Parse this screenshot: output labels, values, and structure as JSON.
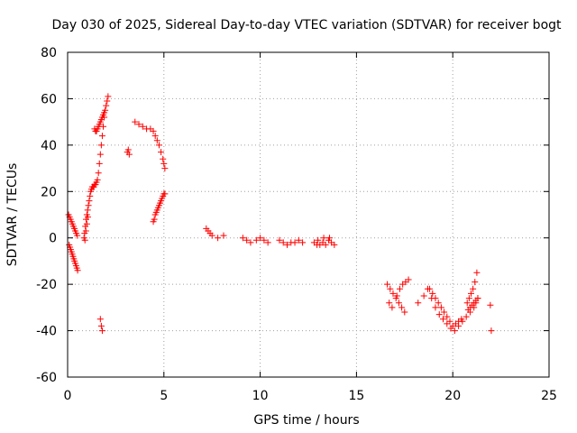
{
  "chart_data": {
    "type": "scatter",
    "title": "Day 030 of 2025, Sidereal Day-to-day VTEC variation (SDTVAR) for receiver bogt",
    "xlabel": "GPS time / hours",
    "ylabel": "SDTVAR / TECUs",
    "xlim": [
      0,
      25
    ],
    "ylim": [
      -60,
      80
    ],
    "xticks": [
      0,
      5,
      10,
      15,
      20,
      25
    ],
    "yticks": [
      -60,
      -40,
      -20,
      0,
      20,
      40,
      60,
      80
    ],
    "xtick_labels": [
      "0",
      "5",
      "10",
      "15",
      "20",
      "25"
    ],
    "ytick_labels": [
      "-60",
      "-40",
      "-20",
      "0",
      "20",
      "40",
      "60",
      "80"
    ],
    "grid": true,
    "marker": "plus",
    "color": "#ff0000",
    "series": [
      {
        "x": [
          0.05,
          0.1,
          0.15,
          0.2,
          0.25,
          0.3,
          0.35,
          0.4,
          0.45,
          0.5,
          0.08,
          0.12,
          0.16,
          0.2,
          0.24,
          0.28,
          0.32,
          0.36,
          0.4,
          0.44,
          0.48,
          0.52,
          0.85,
          0.88,
          0.92,
          0.96,
          1.0,
          1.04,
          1.08,
          1.12,
          1.16,
          1.2,
          1.24,
          1.28,
          1.32,
          1.36,
          1.4,
          1.45,
          1.5,
          1.55,
          1.6,
          1.65,
          1.7,
          1.75,
          1.8,
          1.85,
          1.9,
          1.95,
          2.0,
          2.05,
          2.1,
          1.4,
          1.45,
          1.5,
          1.55,
          1.6,
          1.65,
          1.7,
          1.75,
          1.8,
          1.85,
          1.9,
          0.9,
          0.95,
          1.0,
          1.05,
          1.7,
          1.75,
          1.8,
          3.1,
          3.15,
          3.2,
          3.5,
          3.7,
          3.9,
          4.1,
          4.3,
          4.45,
          4.55,
          4.65,
          4.75,
          4.85,
          4.95,
          5.0,
          5.05,
          4.45,
          4.5,
          4.55,
          4.6,
          4.65,
          4.7,
          4.75,
          4.8,
          4.85,
          4.9,
          4.95,
          5.0,
          5.05,
          7.2,
          7.3,
          7.4,
          7.5,
          7.8,
          8.1,
          9.1,
          9.3,
          9.5,
          9.8,
          10.0,
          10.2,
          10.4,
          11.0,
          11.2,
          11.4,
          11.6,
          11.8,
          12.0,
          12.2,
          12.8,
          12.95,
          13.1,
          13.25,
          13.4,
          13.55,
          13.7,
          13.85,
          13.0,
          13.3,
          13.6,
          16.6,
          16.75,
          16.9,
          17.05,
          17.2,
          17.35,
          17.5,
          17.1,
          17.25,
          17.4,
          17.55,
          17.7,
          16.7,
          16.85,
          18.2,
          18.5,
          18.7,
          18.9,
          19.1,
          19.3,
          19.5,
          19.7,
          19.9,
          20.1,
          20.3,
          20.5,
          20.7,
          20.9,
          21.1,
          21.2,
          21.3,
          18.8,
          18.95,
          19.1,
          19.25,
          19.4,
          19.55,
          19.7,
          19.85,
          20.0,
          20.15,
          20.3,
          20.45,
          20.75,
          20.85,
          20.95,
          21.05,
          21.15,
          21.25,
          20.8,
          20.9,
          21.0,
          21.1,
          21.2,
          21.3,
          21.95,
          22.0
        ],
        "y": [
          10,
          9,
          8,
          7,
          6,
          5,
          4,
          3,
          2,
          1,
          -3,
          -4,
          -5,
          -6,
          -7,
          -8,
          -9,
          -10,
          -11,
          -12,
          -13,
          -14,
          0,
          2,
          5,
          8,
          10,
          12,
          14,
          16,
          18,
          20,
          21,
          22,
          22,
          22,
          23,
          23,
          24,
          25,
          28,
          32,
          36,
          40,
          44,
          48,
          52,
          55,
          57,
          59,
          61,
          47,
          46,
          46,
          47,
          48,
          49,
          50,
          51,
          52,
          53,
          54,
          -1,
          3,
          6,
          9,
          -35,
          -38,
          -40,
          37,
          38,
          36,
          50,
          49,
          48,
          47,
          47,
          46,
          44,
          42,
          40,
          37,
          34,
          32,
          30,
          7,
          8,
          10,
          11,
          12,
          13,
          14,
          15,
          16,
          17,
          18,
          19,
          19,
          4,
          3,
          2,
          1,
          0,
          1,
          0,
          -1,
          -2,
          -1,
          0,
          -1,
          -2,
          -1,
          -2,
          -3,
          -2,
          -2,
          -1,
          -2,
          -2,
          -3,
          -3,
          -2,
          -3,
          -1,
          -2,
          -3,
          -1,
          0,
          0,
          -20,
          -22,
          -24,
          -26,
          -28,
          -30,
          -32,
          -25,
          -22,
          -20,
          -19,
          -18,
          -28,
          -30,
          -28,
          -25,
          -22,
          -26,
          -30,
          -33,
          -35,
          -37,
          -39,
          -40,
          -38,
          -36,
          -34,
          -32,
          -30,
          -28,
          -26,
          -22,
          -24,
          -26,
          -28,
          -30,
          -32,
          -34,
          -36,
          -38,
          -37,
          -36,
          -35,
          -28,
          -26,
          -24,
          -22,
          -19,
          -15,
          -31,
          -30,
          -29,
          -28,
          -27,
          -26,
          -29,
          -40
        ]
      }
    ]
  }
}
